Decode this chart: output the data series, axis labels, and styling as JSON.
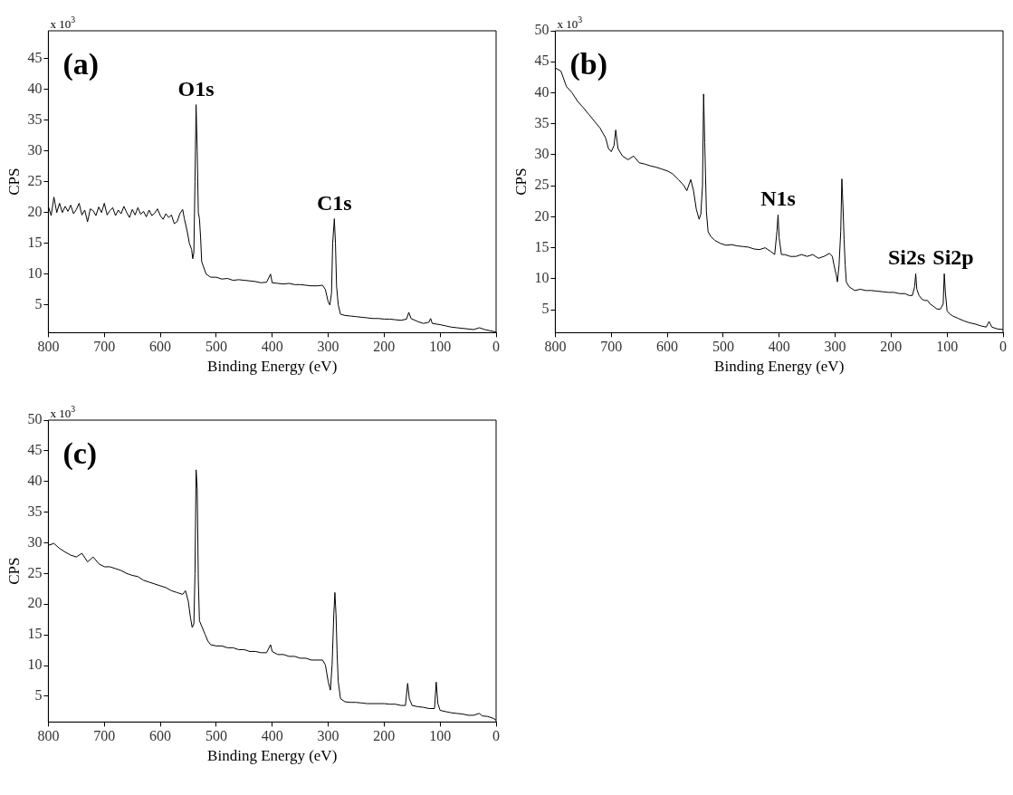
{
  "chart_data": [
    {
      "type": "line",
      "title": "(a)",
      "xlabel": "Binding Energy (eV)",
      "ylabel": "CPS",
      "xlim": [
        800,
        0
      ],
      "xticks": [
        800,
        700,
        600,
        500,
        400,
        300,
        200,
        100,
        0
      ],
      "ylim": [
        0.5,
        49.5
      ],
      "yticks": [
        5,
        10,
        15,
        20,
        25,
        30,
        35,
        40,
        45
      ],
      "grid": false,
      "legend": false,
      "marker": "none",
      "annotations": [
        "x 10$^{3}$",
        {
          "text": "O1s",
          "x": 536,
          "y": 37.5
        },
        {
          "text": "C1s",
          "x": 289,
          "y": 19
        }
      ],
      "series": [
        {
          "color": "#000000",
          "x": [
            800,
            795,
            790,
            785,
            780,
            775,
            770,
            765,
            760,
            755,
            750,
            745,
            740,
            735,
            730,
            725,
            720,
            715,
            710,
            705,
            700,
            695,
            690,
            685,
            680,
            675,
            670,
            665,
            660,
            655,
            650,
            645,
            640,
            635,
            630,
            625,
            620,
            615,
            610,
            605,
            600,
            595,
            590,
            585,
            580,
            575,
            570,
            565,
            560,
            557,
            552,
            548,
            544,
            542,
            540,
            538,
            536,
            534,
            532,
            530,
            528,
            526,
            522,
            518,
            510,
            500,
            490,
            480,
            470,
            460,
            450,
            440,
            430,
            420,
            410,
            403,
            400,
            390,
            380,
            370,
            360,
            350,
            340,
            330,
            320,
            310,
            305,
            300,
            297,
            294,
            292,
            289,
            287,
            285,
            282,
            278,
            270,
            260,
            250,
            240,
            230,
            220,
            210,
            200,
            190,
            180,
            170,
            160,
            156,
            152,
            140,
            130,
            120,
            117,
            114,
            100,
            90,
            80,
            70,
            60,
            50,
            40,
            30,
            20,
            10,
            0
          ],
          "values": [
            21,
            19.5,
            22.5,
            20,
            21.5,
            20,
            21,
            20.2,
            21.2,
            19.8,
            20.5,
            21.5,
            19.6,
            20.4,
            18.5,
            20.6,
            20.3,
            19.5,
            20.9,
            20,
            21.5,
            19.6,
            20.3,
            20.8,
            19.5,
            20.4,
            19.8,
            21,
            20,
            19.2,
            20.5,
            19.6,
            20.8,
            19.7,
            20.2,
            19.3,
            20.4,
            19.5,
            19.9,
            20.6,
            19.5,
            18.9,
            19.8,
            19.2,
            19.6,
            18.2,
            18.5,
            19.8,
            20.5,
            19,
            17,
            15,
            14,
            12.5,
            13.5,
            25,
            37.5,
            30,
            20,
            19,
            16,
            12,
            11,
            10,
            9.5,
            9.5,
            9.2,
            9.3,
            9,
            9.1,
            9,
            8.9,
            8.8,
            8.6,
            8.7,
            10,
            8.6,
            8.5,
            8.4,
            8.5,
            8.3,
            8.3,
            8.2,
            8.1,
            8.1,
            8.2,
            7.5,
            5.5,
            5,
            7,
            15,
            19,
            15,
            8,
            5,
            3.5,
            3.3,
            3.2,
            3.1,
            3,
            2.9,
            2.8,
            2.8,
            2.7,
            2.7,
            2.6,
            2.5,
            2.7,
            3.8,
            2.8,
            2.3,
            2,
            2.2,
            2.8,
            2,
            1.8,
            1.6,
            1.4,
            1.3,
            1.2,
            1.1,
            1,
            1.3,
            1,
            0.8,
            0.6
          ]
        }
      ]
    },
    {
      "type": "line",
      "title": "(b)",
      "xlabel": "Binding Energy (eV)",
      "ylabel": "CPS",
      "xlim": [
        800,
        0
      ],
      "xticks": [
        800,
        700,
        600,
        500,
        400,
        300,
        200,
        100,
        0
      ],
      "ylim": [
        1.3,
        50
      ],
      "yticks": [
        5,
        10,
        15,
        20,
        25,
        30,
        35,
        40,
        45,
        50
      ],
      "grid": false,
      "legend": false,
      "marker": "none",
      "annotations": [
        "x 10$^{3}$",
        {
          "text": "N1s",
          "x": 402,
          "y": 20.3
        },
        {
          "text": "Si2s",
          "x": 156,
          "y": 10.8
        },
        {
          "text": "Si2p",
          "x": 105,
          "y": 10.8
        }
      ],
      "series": [
        {
          "color": "#000000",
          "x": [
            800,
            790,
            780,
            770,
            760,
            750,
            740,
            730,
            720,
            710,
            705,
            700,
            695,
            692,
            688,
            680,
            670,
            660,
            650,
            640,
            630,
            620,
            610,
            600,
            590,
            580,
            570,
            565,
            558,
            553,
            548,
            543,
            540,
            537,
            535,
            533,
            530,
            527,
            522,
            515,
            505,
            495,
            485,
            475,
            465,
            455,
            445,
            435,
            425,
            415,
            408,
            404,
            402,
            400,
            396,
            390,
            380,
            370,
            360,
            350,
            340,
            330,
            320,
            310,
            305,
            302,
            298,
            296,
            293,
            290,
            288,
            286,
            284,
            282,
            280,
            275,
            265,
            255,
            245,
            235,
            225,
            215,
            205,
            195,
            185,
            175,
            168,
            162,
            158,
            156,
            154,
            150,
            145,
            140,
            135,
            130,
            125,
            118,
            112,
            107,
            105,
            103,
            100,
            95,
            90,
            80,
            70,
            60,
            50,
            40,
            30,
            25,
            20,
            10,
            0
          ],
          "values": [
            44,
            43.5,
            41,
            40,
            38.6,
            37.6,
            36.5,
            35.4,
            34.3,
            32.7,
            31,
            30.5,
            31.5,
            34,
            31,
            29.8,
            29.2,
            29.8,
            28.7,
            28.5,
            28.2,
            28,
            27.7,
            27.4,
            26.9,
            26,
            25,
            24.2,
            26,
            24.2,
            21.2,
            19.6,
            20.4,
            25,
            39.8,
            32,
            20.8,
            17.6,
            16.8,
            16.2,
            15.7,
            15.4,
            15.5,
            15.3,
            15.2,
            15.1,
            14.8,
            14.7,
            15,
            14.4,
            13.9,
            17.6,
            20.3,
            16.6,
            13.9,
            13.9,
            13.6,
            13.6,
            13.9,
            13.6,
            13.9,
            13.3,
            13.6,
            14.1,
            13.6,
            12.2,
            10.6,
            9.5,
            12.2,
            17.6,
            26.1,
            21.8,
            16.3,
            12.2,
            9.5,
            8.7,
            8.1,
            8.3,
            8.1,
            8.1,
            8,
            7.9,
            7.8,
            7.8,
            7.6,
            7.6,
            7.3,
            7.3,
            8.7,
            10.8,
            8.3,
            7.3,
            6.7,
            6.5,
            6.5,
            5.9,
            5.6,
            5.1,
            5.1,
            5.9,
            10.8,
            7.8,
            4.8,
            4.3,
            4,
            3.6,
            3.2,
            2.9,
            2.7,
            2.4,
            2.2,
            3.1,
            2.2,
            1.9,
            1.8
          ]
        }
      ]
    },
    {
      "type": "line",
      "title": "(c)",
      "xlabel": "Binding Energy (eV)",
      "ylabel": "CPS",
      "xlim": [
        800,
        0
      ],
      "xticks": [
        800,
        700,
        600,
        500,
        400,
        300,
        200,
        100,
        0
      ],
      "ylim": [
        0.8,
        50
      ],
      "yticks": [
        5,
        10,
        15,
        20,
        25,
        30,
        35,
        40,
        45,
        50
      ],
      "grid": false,
      "legend": false,
      "marker": "none",
      "annotations": [
        "x 10$^{3}$"
      ],
      "series": [
        {
          "color": "#000000",
          "x": [
            800,
            790,
            780,
            770,
            760,
            750,
            740,
            730,
            720,
            710,
            700,
            690,
            680,
            670,
            660,
            650,
            640,
            630,
            620,
            610,
            600,
            590,
            580,
            570,
            560,
            555,
            550,
            546,
            543,
            540,
            538,
            536,
            534,
            532,
            530,
            525,
            520,
            515,
            510,
            500,
            490,
            480,
            470,
            460,
            450,
            440,
            430,
            420,
            410,
            403,
            400,
            390,
            380,
            370,
            360,
            350,
            340,
            330,
            320,
            310,
            305,
            300,
            296,
            293,
            290,
            288,
            286,
            284,
            282,
            278,
            270,
            260,
            250,
            240,
            230,
            220,
            210,
            200,
            190,
            180,
            170,
            162,
            158,
            155,
            150,
            140,
            130,
            120,
            110,
            107,
            104,
            100,
            90,
            80,
            70,
            60,
            50,
            40,
            30,
            25,
            15,
            5,
            0
          ],
          "values": [
            29.6,
            29.9,
            29.1,
            28.5,
            28,
            27.7,
            28.3,
            26.9,
            27.7,
            26.6,
            26.1,
            26.1,
            25.8,
            25.5,
            25,
            24.7,
            24.5,
            23.9,
            23.6,
            23.3,
            23,
            22.7,
            22.2,
            21.9,
            21.6,
            22.2,
            20.5,
            17.8,
            16.2,
            16.8,
            25,
            41.9,
            38.9,
            23.9,
            17.3,
            16.2,
            15.1,
            14,
            13.4,
            13.2,
            13.2,
            12.9,
            12.9,
            12.6,
            12.6,
            12.3,
            12.3,
            12.1,
            12.1,
            13.4,
            12.3,
            11.8,
            11.8,
            11.5,
            11.5,
            11.2,
            11.2,
            10.9,
            10.9,
            10.9,
            10.1,
            7.4,
            6,
            10.1,
            18.3,
            21.9,
            18.3,
            11.8,
            7.4,
            4.6,
            4.1,
            4,
            4,
            3.9,
            3.8,
            3.8,
            3.8,
            3.8,
            3.7,
            3.7,
            3.5,
            3.5,
            7.1,
            4.6,
            3.5,
            3.3,
            3.2,
            3,
            3,
            7.3,
            3.8,
            2.7,
            2.5,
            2.3,
            2.2,
            2.1,
            1.9,
            1.9,
            2.2,
            1.8,
            1.7,
            1.4,
            1.1
          ]
        }
      ]
    }
  ]
}
